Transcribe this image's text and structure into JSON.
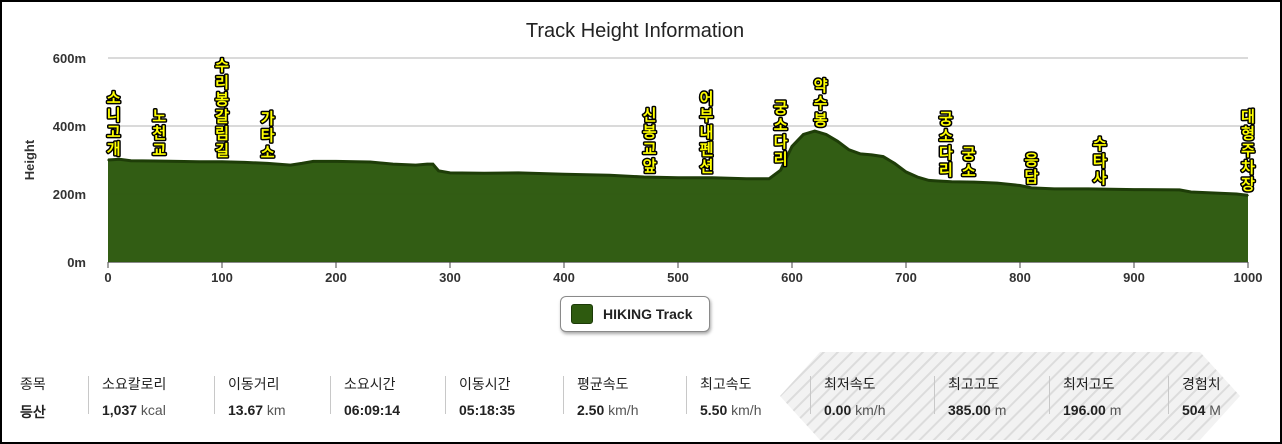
{
  "chart_data": {
    "type": "area",
    "title": "Track Height Information",
    "ylabel": "Height",
    "xlabel": "",
    "xlim": [
      0,
      1000
    ],
    "ylim": [
      0,
      600
    ],
    "x_ticks": [
      0,
      100,
      200,
      300,
      400,
      500,
      600,
      700,
      800,
      900,
      1000
    ],
    "y_ticks": [
      "0m",
      "200m",
      "400m",
      "600m"
    ],
    "grid": true,
    "legend": "bottom-center",
    "series": [
      {
        "name": "HIKING Track",
        "color": "#2e5a0f",
        "x": [
          0,
          10,
          20,
          40,
          60,
          80,
          100,
          120,
          140,
          160,
          170,
          180,
          200,
          230,
          250,
          270,
          280,
          285,
          290,
          300,
          330,
          360,
          400,
          440,
          470,
          500,
          530,
          560,
          580,
          590,
          600,
          610,
          620,
          630,
          640,
          650,
          660,
          670,
          680,
          690,
          700,
          710,
          720,
          730,
          740,
          760,
          780,
          800,
          810,
          830,
          860,
          900,
          940,
          950,
          970,
          990,
          1000
        ],
        "y": [
          300,
          302,
          298,
          297,
          296,
          295,
          295,
          293,
          290,
          285,
          290,
          296,
          296,
          294,
          288,
          285,
          288,
          288,
          268,
          262,
          261,
          262,
          258,
          255,
          250,
          248,
          248,
          245,
          245,
          270,
          340,
          375,
          385,
          375,
          355,
          330,
          318,
          315,
          310,
          290,
          265,
          250,
          240,
          238,
          236,
          235,
          232,
          225,
          218,
          215,
          215,
          213,
          212,
          206,
          203,
          200,
          196
        ]
      }
    ],
    "annotations": [
      {
        "text": "소니고개",
        "x": 5,
        "y": 300
      },
      {
        "text": "노천교",
        "x": 45,
        "y": 297
      },
      {
        "text": "수리봉갈림길",
        "x": 100,
        "y": 295
      },
      {
        "text": "가타소",
        "x": 140,
        "y": 290
      },
      {
        "text": "신봉교앞",
        "x": 475,
        "y": 250
      },
      {
        "text": "어부내펜션",
        "x": 525,
        "y": 248
      },
      {
        "text": "궁소다리",
        "x": 590,
        "y": 270
      },
      {
        "text": "약수봉",
        "x": 625,
        "y": 385
      },
      {
        "text": "궁소다리",
        "x": 735,
        "y": 238
      },
      {
        "text": "궁소",
        "x": 755,
        "y": 236
      },
      {
        "text": "응담",
        "x": 810,
        "y": 218
      },
      {
        "text": "수타사",
        "x": 870,
        "y": 214
      },
      {
        "text": "대형주차장",
        "x": 1000,
        "y": 196
      }
    ]
  },
  "stats": [
    {
      "label": "종목",
      "value": "등산",
      "unit": ""
    },
    {
      "label": "소요칼로리",
      "value": "1,037",
      "unit": "kcal"
    },
    {
      "label": "이동거리",
      "value": "13.67",
      "unit": "km"
    },
    {
      "label": "소요시간",
      "value": "06:09:14",
      "unit": ""
    },
    {
      "label": "이동시간",
      "value": "05:18:35",
      "unit": ""
    },
    {
      "label": "평균속도",
      "value": "2.50",
      "unit": "km/h"
    },
    {
      "label": "최고속도",
      "value": "5.50",
      "unit": "km/h"
    },
    {
      "label": "최저속도",
      "value": "0.00",
      "unit": "km/h"
    },
    {
      "label": "최고고도",
      "value": "385.00",
      "unit": "m"
    },
    {
      "label": "최저고도",
      "value": "196.00",
      "unit": "m"
    },
    {
      "label": "경험치",
      "value": "504",
      "unit": "M"
    }
  ]
}
